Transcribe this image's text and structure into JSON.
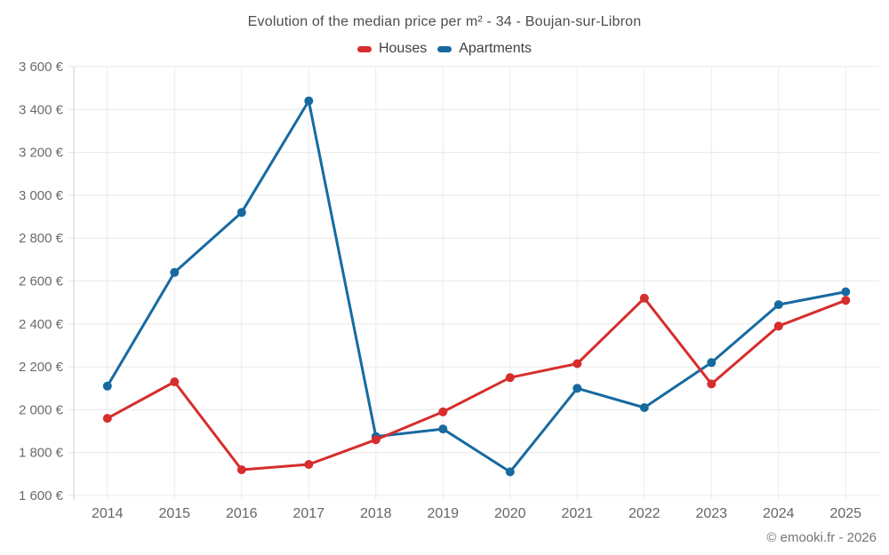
{
  "header": {
    "title": "Evolution of the median price per m² - 34 - Boujan-sur-Libron"
  },
  "footer": {
    "credit": "© emooki.fr - 2026"
  },
  "chart_data": {
    "type": "line",
    "title": "Evolution of the median price per m² - 34 - Boujan-sur-Libron",
    "categories": [
      2014,
      2015,
      2016,
      2017,
      2018,
      2019,
      2020,
      2021,
      2022,
      2023,
      2024,
      2025
    ],
    "series": [
      {
        "name": "Houses",
        "color": "#d62d2d",
        "values": [
          1960,
          2130,
          1720,
          1745,
          1860,
          1990,
          2150,
          2215,
          2520,
          2120,
          2390,
          2510
        ]
      },
      {
        "name": "Apartments",
        "color": "#176aa0",
        "values": [
          2110,
          2640,
          2920,
          3440,
          1875,
          1910,
          1710,
          2100,
          2010,
          2220,
          2490,
          2550
        ]
      }
    ],
    "xlabel": "",
    "ylabel": "",
    "ylim": [
      1600,
      3600
    ],
    "ytick_step": 200,
    "ytick_labels": [
      "1 600 €",
      "1 800 €",
      "2 000 €",
      "2 200 €",
      "2 400 €",
      "2 600 €",
      "2 800 €",
      "3 000 €",
      "3 200 €",
      "3 400 €",
      "3 600 €"
    ],
    "grid": true,
    "legend_position": "top",
    "grid_color": "#e8e8e8",
    "axis_color": "#cfcfcf",
    "marker_radius": 5,
    "line_width": 3
  }
}
